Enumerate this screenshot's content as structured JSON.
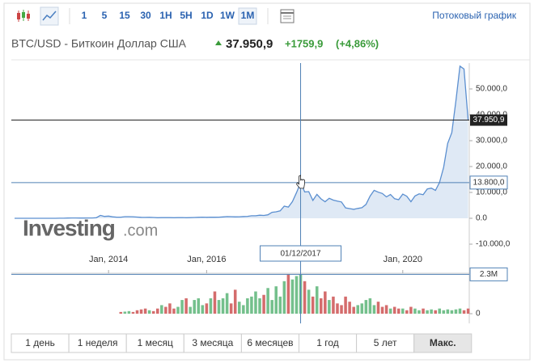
{
  "toolbar": {
    "intervals": [
      "1",
      "5",
      "15",
      "30",
      "1H",
      "5H",
      "1D",
      "1W",
      "1M"
    ],
    "active_interval": 8,
    "link": "Потоковый график"
  },
  "header": {
    "symbol": "BTC/USD - Биткоин Доллар США",
    "change": "+1759,9",
    "change_pct": "(+4,86%)"
  },
  "watermark": [
    "Investing",
    ".com"
  ],
  "ranges": [
    "1 день",
    "1 неделя",
    "1 месяц",
    "3 месяца",
    "6 месяцев",
    "1 год",
    "5 лет",
    "Макс."
  ],
  "active_range": 7,
  "chart_data": {
    "type": "line",
    "color": "#5b8fd0",
    "area_color": "#dfe9f5",
    "up_color": "#74c08c",
    "down_color": "#d46c6c",
    "x": [
      "2012-02",
      "2012-03",
      "2012-04",
      "2012-05",
      "2012-06",
      "2012-07",
      "2012-08",
      "2012-09",
      "2012-10",
      "2012-11",
      "2012-12",
      "2013-01",
      "2013-02",
      "2013-03",
      "2013-04",
      "2013-05",
      "2013-06",
      "2013-07",
      "2013-08",
      "2013-09",
      "2013-10",
      "2013-11",
      "2013-12",
      "2014-01",
      "2014-02",
      "2014-03",
      "2014-04",
      "2014-05",
      "2014-06",
      "2014-07",
      "2014-08",
      "2014-09",
      "2014-10",
      "2014-11",
      "2014-12",
      "2015-01",
      "2015-02",
      "2015-03",
      "2015-04",
      "2015-05",
      "2015-06",
      "2015-07",
      "2015-08",
      "2015-09",
      "2015-10",
      "2015-11",
      "2015-12",
      "2016-01",
      "2016-02",
      "2016-03",
      "2016-04",
      "2016-05",
      "2016-06",
      "2016-07",
      "2016-08",
      "2016-09",
      "2016-10",
      "2016-11",
      "2016-12",
      "2017-01",
      "2017-02",
      "2017-03",
      "2017-04",
      "2017-05",
      "2017-06",
      "2017-07",
      "2017-08",
      "2017-09",
      "2017-10",
      "2017-11",
      "2017-12",
      "2018-01",
      "2018-02",
      "2018-03",
      "2018-04",
      "2018-05",
      "2018-06",
      "2018-07",
      "2018-08",
      "2018-09",
      "2018-10",
      "2018-11",
      "2018-12",
      "2019-01",
      "2019-02",
      "2019-03",
      "2019-04",
      "2019-05",
      "2019-06",
      "2019-07",
      "2019-08",
      "2019-09",
      "2019-10",
      "2019-11",
      "2019-12",
      "2020-01",
      "2020-02",
      "2020-03",
      "2020-04",
      "2020-05",
      "2020-06",
      "2020-07",
      "2020-08",
      "2020-09",
      "2020-10",
      "2020-11",
      "2020-12",
      "2021-01",
      "2021-02",
      "2021-03",
      "2021-04",
      "2021-05"
    ],
    "values": [
      5,
      5,
      5,
      5,
      7,
      9,
      10,
      12,
      11,
      12,
      13,
      20,
      33,
      93,
      139,
      128,
      97,
      106,
      135,
      133,
      204,
      1130,
      730,
      850,
      550,
      450,
      440,
      630,
      640,
      580,
      480,
      390,
      340,
      380,
      320,
      220,
      250,
      245,
      235,
      230,
      265,
      285,
      230,
      236,
      315,
      378,
      430,
      370,
      437,
      416,
      448,
      530,
      670,
      624,
      575,
      609,
      700,
      745,
      964,
      970,
      1190,
      1080,
      1350,
      2300,
      2500,
      2870,
      4700,
      4340,
      6450,
      9950,
      13800,
      10200,
      10300,
      6900,
      9250,
      7500,
      6400,
      7730,
      7030,
      6630,
      6320,
      4020,
      3740,
      3460,
      3820,
      4100,
      5350,
      8570,
      10820,
      10080,
      9590,
      8290,
      9200,
      7550,
      7190,
      9350,
      8540,
      6410,
      8620,
      9450,
      9140,
      11350,
      11650,
      10780,
      13800,
      19700,
      28950,
      33100,
      45200,
      58800,
      57700,
      37950.9
    ],
    "volume": [
      null,
      null,
      null,
      null,
      null,
      null,
      null,
      null,
      null,
      null,
      null,
      null,
      null,
      null,
      null,
      null,
      null,
      null,
      null,
      null,
      null,
      null,
      null,
      null,
      null,
      null,
      0.1,
      0.12,
      0.15,
      0.1,
      0.2,
      0.25,
      0.3,
      0.2,
      0.15,
      0.3,
      0.5,
      0.4,
      0.6,
      0.3,
      0.4,
      0.8,
      0.9,
      0.4,
      0.8,
      0.9,
      0.5,
      0.6,
      0.9,
      1.3,
      0.8,
      0.9,
      1.2,
      0.6,
      1.4,
      0.7,
      0.5,
      0.9,
      1.0,
      1.3,
      0.9,
      1.1,
      1.5,
      0.8,
      1.6,
      1.0,
      1.9,
      2.3,
      2.0,
      2.2,
      2.3,
      1.9,
      1.4,
      1.0,
      1.6,
      0.9,
      1.3,
      0.8,
      1.0,
      0.6,
      0.5,
      1.0,
      0.7,
      0.4,
      0.5,
      0.6,
      0.8,
      0.9,
      0.5,
      0.7,
      0.4,
      0.5,
      0.3,
      0.4,
      0.3,
      0.3,
      0.2,
      0.4,
      0.3,
      0.2,
      0.3,
      0.2,
      0.25,
      0.2,
      0.3,
      0.2,
      0.25,
      0.2,
      0.25,
      0.3,
      0.2,
      0.3
    ],
    "xlim": [
      "2012-02",
      "2021-05"
    ],
    "xticks": [
      {
        "value": "2014-01",
        "label": "Jan, 2014"
      },
      {
        "value": "2016-01",
        "label": "Jan, 2016"
      },
      {
        "value": "2020-01",
        "label": "Jan, 2020"
      }
    ],
    "ylim": [
      -20000,
      60000
    ],
    "yticks": [
      {
        "value": -10000,
        "label": "-10.000,0"
      },
      {
        "value": 0,
        "label": "0.0"
      },
      {
        "value": 10000,
        "label": "10.000,0"
      },
      {
        "value": 20000,
        "label": "20.000,0"
      },
      {
        "value": 30000,
        "label": "30.000,0"
      },
      {
        "value": 40000,
        "label": "40.000,0"
      },
      {
        "value": 50000,
        "label": "50.000,0"
      }
    ],
    "volume_ylim": [
      0,
      2.6
    ],
    "volume_yticks": [
      0
    ],
    "price_line": {
      "value": 37950.9,
      "label": "37.950,9"
    },
    "crosshair_y": {
      "value": 13800,
      "label": "13.800,0"
    },
    "crosshair_x": {
      "value": "2017-12",
      "label": "01/12/2017"
    },
    "crosshair_volume": {
      "value": 2.3,
      "label": "2.3M"
    }
  }
}
